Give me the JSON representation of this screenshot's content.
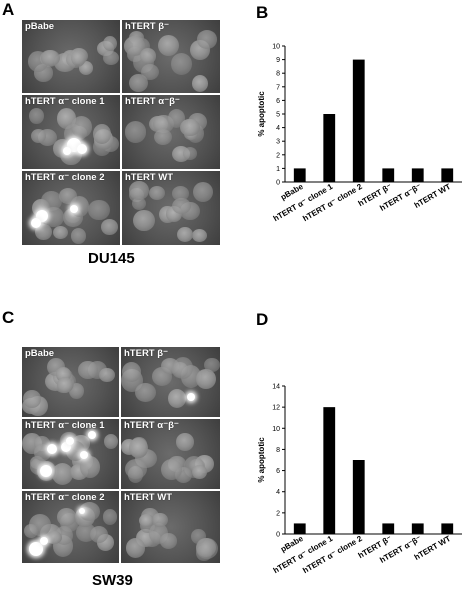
{
  "panels": {
    "A": "A",
    "B": "B",
    "C": "C",
    "D": "D"
  },
  "captions": {
    "top": "DU145",
    "bottom": "SW39"
  },
  "micrographs": {
    "top": [
      "pBabe",
      "hTERT β⁻",
      "hTERT α⁻ clone 1",
      "hTERT α⁻β⁻",
      "hTERT α⁻ clone 2",
      "hTERT WT"
    ],
    "bottom": [
      "pBabe",
      "hTERT β⁻",
      "hTERT α⁻ clone 1",
      "hTERT α⁻β⁻",
      "hTERT α⁻ clone 2",
      "hTERT WT"
    ]
  },
  "chart_data": [
    {
      "type": "bar",
      "panel": "B",
      "ylabel": "% apoptotic",
      "categories": [
        "pBabe",
        "hTERT α⁻ clone 1",
        "hTERT α⁻ clone 2",
        "hTERT β⁻",
        "hTERT α⁻β⁻",
        "hTERT WT"
      ],
      "values": [
        1,
        5,
        9,
        1,
        1,
        1
      ],
      "ylim": [
        0,
        10
      ],
      "yticks": [
        0,
        1,
        2,
        3,
        4,
        5,
        6,
        7,
        8,
        9,
        10
      ],
      "bar_color": "#000000",
      "grid": false
    },
    {
      "type": "bar",
      "panel": "D",
      "ylabel": "% apoptotic",
      "categories": [
        "pBabe",
        "hTERT α⁻ clone 1",
        "hTERT α⁻ clone 2",
        "hTERT β⁻",
        "hTERT α⁻β⁻",
        "hTERT WT"
      ],
      "values": [
        1,
        12,
        7,
        1,
        1,
        1
      ],
      "ylim": [
        0,
        14
      ],
      "yticks": [
        0,
        2,
        4,
        6,
        8,
        10,
        12,
        14
      ],
      "bar_color": "#000000",
      "grid": false
    }
  ]
}
